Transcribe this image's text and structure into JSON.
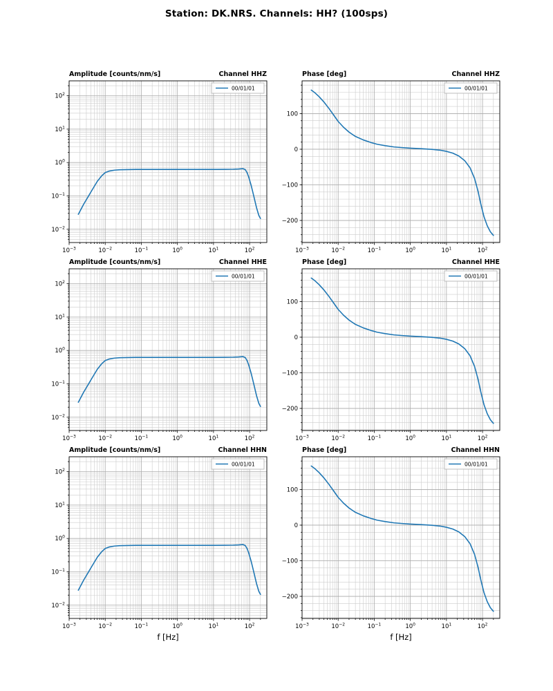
{
  "figure": {
    "title": "Station: DK.NRS. Channels: HH? (100sps)",
    "xlabel": "f [Hz]",
    "line_color": "#1f77b4",
    "grid_color": "#b0b0b0",
    "background": "#ffffff"
  },
  "chart_data": [
    {
      "type": "line",
      "channel": "HHZ",
      "quantity": "amplitude",
      "title_left": "Amplitude [counts/nm/s]",
      "title_right": "Channel HHZ",
      "legend": [
        "00/01/01"
      ],
      "xscale": "log",
      "yscale": "log",
      "xlim": [
        0.001,
        300
      ],
      "ylim": [
        0.004,
        280
      ],
      "x": [
        0.0018,
        0.0025,
        0.004,
        0.006,
        0.008,
        0.01,
        0.013,
        0.018,
        0.025,
        0.04,
        0.07,
        0.1,
        0.3,
        1,
        3,
        10,
        20,
        35,
        50,
        65,
        75,
        85,
        95,
        110,
        130,
        155,
        180,
        200
      ],
      "y": [
        0.028,
        0.055,
        0.13,
        0.27,
        0.4,
        0.5,
        0.555,
        0.59,
        0.605,
        0.615,
        0.62,
        0.62,
        0.62,
        0.62,
        0.62,
        0.62,
        0.625,
        0.63,
        0.64,
        0.655,
        0.62,
        0.5,
        0.36,
        0.21,
        0.1,
        0.045,
        0.026,
        0.021
      ]
    },
    {
      "type": "line",
      "channel": "HHZ",
      "quantity": "phase",
      "title_left": "Phase [deg]",
      "title_right": "Channel HHZ",
      "legend": [
        "00/01/01"
      ],
      "xscale": "log",
      "yscale": "linear",
      "xlim": [
        0.001,
        300
      ],
      "ylim": [
        -262,
        192
      ],
      "yticks": [
        -200,
        -100,
        0,
        100
      ],
      "yminor_step": 20,
      "x": [
        0.0018,
        0.0023,
        0.003,
        0.004,
        0.0055,
        0.0075,
        0.01,
        0.014,
        0.02,
        0.03,
        0.05,
        0.08,
        0.12,
        0.2,
        0.35,
        0.6,
        1,
        2,
        4,
        7,
        10,
        15,
        22,
        32,
        45,
        60,
        75,
        90,
        110,
        135,
        165,
        200
      ],
      "y": [
        166,
        158,
        147,
        133,
        115,
        96,
        78,
        62,
        48,
        36,
        26,
        19,
        14,
        10,
        6.5,
        4.5,
        3,
        1.5,
        -0.5,
        -3,
        -6,
        -11,
        -19,
        -32,
        -52,
        -82,
        -118,
        -155,
        -190,
        -215,
        -232,
        -242
      ]
    },
    {
      "type": "line",
      "channel": "HHE",
      "quantity": "amplitude",
      "title_left": "Amplitude [counts/nm/s]",
      "title_right": "Channel HHE",
      "legend": [
        "00/01/01"
      ],
      "xscale": "log",
      "yscale": "log",
      "xlim": [
        0.001,
        300
      ],
      "ylim": [
        0.004,
        280
      ],
      "x": [
        0.0018,
        0.0025,
        0.004,
        0.006,
        0.008,
        0.01,
        0.013,
        0.018,
        0.025,
        0.04,
        0.07,
        0.1,
        0.3,
        1,
        3,
        10,
        20,
        35,
        50,
        65,
        75,
        85,
        95,
        110,
        130,
        155,
        180,
        200
      ],
      "y": [
        0.028,
        0.055,
        0.13,
        0.27,
        0.4,
        0.5,
        0.555,
        0.59,
        0.605,
        0.615,
        0.62,
        0.62,
        0.62,
        0.62,
        0.62,
        0.62,
        0.625,
        0.63,
        0.64,
        0.655,
        0.62,
        0.5,
        0.36,
        0.21,
        0.1,
        0.045,
        0.026,
        0.021
      ]
    },
    {
      "type": "line",
      "channel": "HHE",
      "quantity": "phase",
      "title_left": "Phase [deg]",
      "title_right": "Channel HHE",
      "legend": [
        "00/01/01"
      ],
      "xscale": "log",
      "yscale": "linear",
      "xlim": [
        0.001,
        300
      ],
      "ylim": [
        -262,
        192
      ],
      "yticks": [
        -200,
        -100,
        0,
        100
      ],
      "yminor_step": 20,
      "x": [
        0.0018,
        0.0023,
        0.003,
        0.004,
        0.0055,
        0.0075,
        0.01,
        0.014,
        0.02,
        0.03,
        0.05,
        0.08,
        0.12,
        0.2,
        0.35,
        0.6,
        1,
        2,
        4,
        7,
        10,
        15,
        22,
        32,
        45,
        60,
        75,
        90,
        110,
        135,
        165,
        200
      ],
      "y": [
        166,
        158,
        147,
        133,
        115,
        96,
        78,
        62,
        48,
        36,
        26,
        19,
        14,
        10,
        6.5,
        4.5,
        3,
        1.5,
        -0.5,
        -3,
        -6,
        -11,
        -19,
        -32,
        -52,
        -82,
        -118,
        -155,
        -190,
        -215,
        -232,
        -242
      ]
    },
    {
      "type": "line",
      "channel": "HHN",
      "quantity": "amplitude",
      "title_left": "Amplitude [counts/nm/s]",
      "title_right": "Channel HHN",
      "legend": [
        "00/01/01"
      ],
      "xscale": "log",
      "yscale": "log",
      "xlim": [
        0.001,
        300
      ],
      "ylim": [
        0.004,
        280
      ],
      "x": [
        0.0018,
        0.0025,
        0.004,
        0.006,
        0.008,
        0.01,
        0.013,
        0.018,
        0.025,
        0.04,
        0.07,
        0.1,
        0.3,
        1,
        3,
        10,
        20,
        35,
        50,
        65,
        75,
        85,
        95,
        110,
        130,
        155,
        180,
        200
      ],
      "y": [
        0.028,
        0.055,
        0.13,
        0.27,
        0.4,
        0.5,
        0.555,
        0.59,
        0.605,
        0.615,
        0.62,
        0.62,
        0.62,
        0.62,
        0.62,
        0.62,
        0.625,
        0.63,
        0.64,
        0.655,
        0.62,
        0.5,
        0.36,
        0.21,
        0.1,
        0.045,
        0.026,
        0.021
      ]
    },
    {
      "type": "line",
      "channel": "HHN",
      "quantity": "phase",
      "title_left": "Phase [deg]",
      "title_right": "Channel HHN",
      "legend": [
        "00/01/01"
      ],
      "xscale": "log",
      "yscale": "linear",
      "xlim": [
        0.001,
        300
      ],
      "ylim": [
        -262,
        192
      ],
      "yticks": [
        -200,
        -100,
        0,
        100
      ],
      "yminor_step": 20,
      "x": [
        0.0018,
        0.0023,
        0.003,
        0.004,
        0.0055,
        0.0075,
        0.01,
        0.014,
        0.02,
        0.03,
        0.05,
        0.08,
        0.12,
        0.2,
        0.35,
        0.6,
        1,
        2,
        4,
        7,
        10,
        15,
        22,
        32,
        45,
        60,
        75,
        90,
        110,
        135,
        165,
        200
      ],
      "y": [
        166,
        158,
        147,
        133,
        115,
        96,
        78,
        62,
        48,
        36,
        26,
        19,
        14,
        10,
        6.5,
        4.5,
        3,
        1.5,
        -0.5,
        -3,
        -6,
        -11,
        -19,
        -32,
        -52,
        -82,
        -118,
        -155,
        -190,
        -215,
        -232,
        -242
      ]
    }
  ]
}
